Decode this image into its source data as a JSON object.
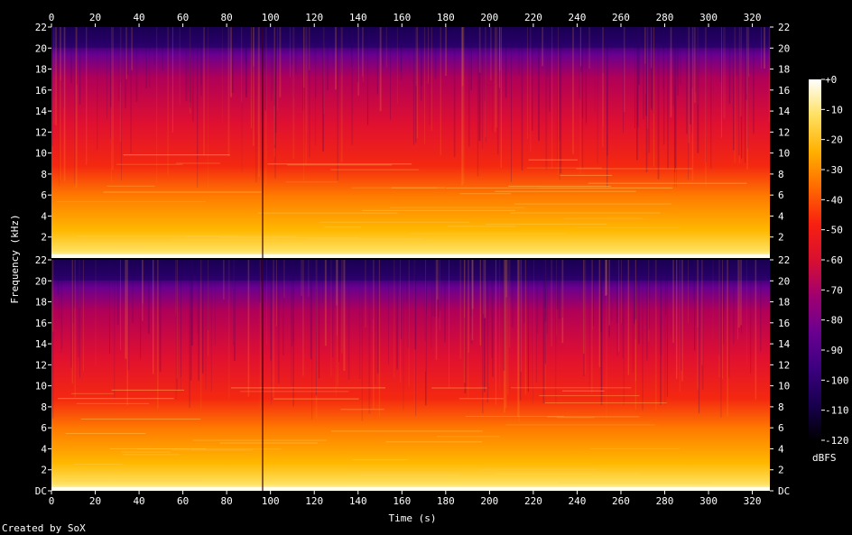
{
  "chart_data": {
    "type": "heatmap",
    "title": "",
    "xlabel": "Time (s)",
    "ylabel": "Frequency (kHz)",
    "xlim": [
      0,
      328
    ],
    "x_ticks": [
      0,
      20,
      40,
      60,
      80,
      100,
      120,
      140,
      160,
      180,
      200,
      220,
      240,
      260,
      280,
      300,
      320
    ],
    "channels": [
      {
        "y_tick_labels": [
          "2",
          "4",
          "6",
          "8",
          "10",
          "12",
          "14",
          "16",
          "18",
          "20",
          "22"
        ],
        "y_tick_values": [
          2,
          4,
          6,
          8,
          10,
          12,
          14,
          16,
          18,
          20,
          22
        ]
      },
      {
        "y_tick_labels": [
          "DC",
          "2",
          "4",
          "6",
          "8",
          "10",
          "12",
          "14",
          "16",
          "18",
          "20",
          "22"
        ],
        "y_tick_values": [
          0,
          2,
          4,
          6,
          8,
          10,
          12,
          14,
          16,
          18,
          20,
          22
        ]
      }
    ],
    "ylim": [
      0,
      22
    ],
    "colorbar": {
      "label": "dBFS",
      "ticks": [
        "+0",
        "-10",
        "-20",
        "-30",
        "-40",
        "-50",
        "-60",
        "-70",
        "-80",
        "-90",
        "-100",
        "-110",
        "-120"
      ],
      "range": [
        -120,
        0
      ],
      "colors": [
        "#000000",
        "#180050",
        "#3c0080",
        "#6a0090",
        "#a00070",
        "#d81030",
        "#f82010",
        "#ff6a00",
        "#ffb000",
        "#ffe060",
        "#ffffff"
      ]
    },
    "footer": "Created by SoX"
  }
}
